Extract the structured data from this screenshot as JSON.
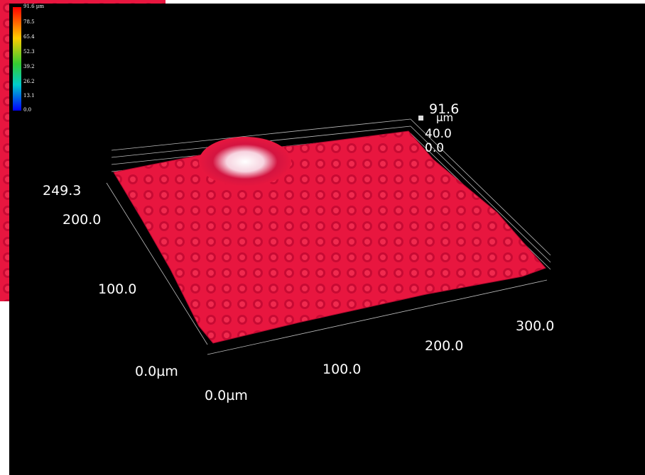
{
  "colorbar": {
    "labels": [
      "91.6 µm",
      "78.5",
      "65.4",
      "52.3",
      "39.2",
      "26.2",
      "13.1",
      "0.0"
    ]
  },
  "axes": {
    "z": {
      "labels": [
        "91.6",
        "40.0",
        "0.0"
      ],
      "unit": "µm"
    },
    "y": {
      "labels": [
        "249.3",
        "200.0",
        "100.0",
        "0.0µm"
      ]
    },
    "x": {
      "labels": [
        "0.0µm",
        "100.0",
        "200.0",
        "300.0"
      ]
    }
  }
}
